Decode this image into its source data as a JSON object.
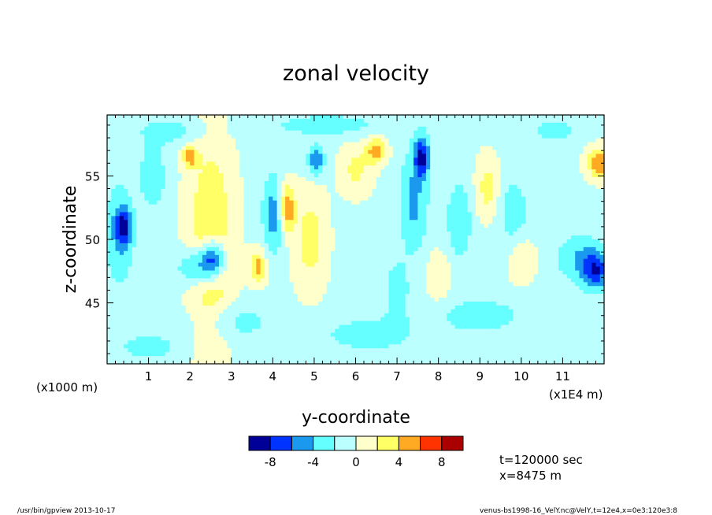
{
  "chart_data": {
    "type": "heatmap",
    "title": "zonal velocity",
    "xlabel": "y-coordinate",
    "ylabel": "z-coordinate",
    "x_unit_note": "(x1E4 m)",
    "y_unit_note": "(x1000 m)",
    "xlim": [
      0,
      12
    ],
    "ylim": [
      40.2,
      59.8
    ],
    "x_ticks": [
      "1",
      "2",
      "3",
      "4",
      "5",
      "6",
      "7",
      "8",
      "9",
      "10",
      "11"
    ],
    "y_ticks": [
      "45",
      "50",
      "55"
    ],
    "x_tick_values": [
      1,
      2,
      3,
      4,
      5,
      6,
      7,
      8,
      9,
      10,
      11
    ],
    "y_tick_values": [
      45,
      50,
      55
    ],
    "levels": [
      -10,
      -8,
      -6,
      -4,
      -2,
      0,
      2,
      4,
      6,
      8,
      10
    ],
    "colorbar_labels": [
      "-8",
      "-4",
      "0",
      "4",
      "8"
    ],
    "colorbar_label_values": [
      -8,
      -4,
      0,
      4,
      8
    ],
    "colors": [
      "#000099",
      "#0033ff",
      "#1a99ee",
      "#66ffff",
      "#bbffff",
      "#ffffcc",
      "#ffff66",
      "#ffaa22",
      "#ff3300",
      "#aa0000"
    ],
    "blobs": [
      {
        "y": 2.55,
        "z": 48.5,
        "amp": -8.5,
        "wy": 0.3,
        "wz": 1.6
      },
      {
        "y": 2.15,
        "z": 47.8,
        "amp": -5.0,
        "wy": 0.45,
        "wz": 1.5
      },
      {
        "y": 2.5,
        "z": 49.5,
        "amp": 5.0,
        "wy": 0.55,
        "wz": 8.0
      },
      {
        "y": 3.65,
        "z": 47.8,
        "amp": 5.5,
        "wy": 0.2,
        "wz": 1.3
      },
      {
        "y": 4.35,
        "z": 52.5,
        "amp": 6.5,
        "wy": 0.18,
        "wz": 1.8
      },
      {
        "y": 4.0,
        "z": 52.0,
        "amp": -4.5,
        "wy": 0.25,
        "wz": 3.2
      },
      {
        "y": 4.9,
        "z": 50.0,
        "amp": 3.5,
        "wy": 0.4,
        "wz": 4.0
      },
      {
        "y": 5.05,
        "z": 56.2,
        "amp": -5.5,
        "wy": 0.2,
        "wz": 1.2
      },
      {
        "y": 0.4,
        "z": 51.0,
        "amp": -6.0,
        "wy": 0.18,
        "wz": 1.3
      },
      {
        "y": 0.3,
        "z": 50.5,
        "amp": -3.8,
        "wy": 0.35,
        "wz": 4.0
      },
      {
        "y": 7.6,
        "z": 56.5,
        "amp": -7.5,
        "wy": 0.18,
        "wz": 1.6
      },
      {
        "y": 7.4,
        "z": 53.0,
        "amp": -4.0,
        "wy": 0.35,
        "wz": 4.0
      },
      {
        "y": 8.5,
        "z": 51.5,
        "amp": -3.5,
        "wy": 0.3,
        "wz": 3.0
      },
      {
        "y": 11.8,
        "z": 47.5,
        "amp": -6.5,
        "wy": 0.3,
        "wz": 1.5
      },
      {
        "y": 11.4,
        "z": 48.5,
        "amp": -3.5,
        "wy": 0.55,
        "wz": 2.0
      },
      {
        "y": 11.9,
        "z": 56.0,
        "amp": 6.5,
        "wy": 0.3,
        "wz": 1.2
      },
      {
        "y": 6.5,
        "z": 57.0,
        "amp": 5.5,
        "wy": 0.25,
        "wz": 1.0
      },
      {
        "y": 6.0,
        "z": 55.5,
        "amp": 3.0,
        "wy": 0.4,
        "wz": 2.0
      },
      {
        "y": 2.0,
        "z": 56.5,
        "amp": 5.5,
        "wy": 0.18,
        "wz": 0.8
      },
      {
        "y": 1.1,
        "z": 55.0,
        "amp": -3.5,
        "wy": 0.3,
        "wz": 2.5
      },
      {
        "y": 9.2,
        "z": 54.0,
        "amp": 3.5,
        "wy": 0.3,
        "wz": 2.5
      },
      {
        "y": 9.8,
        "z": 52.0,
        "amp": -2.8,
        "wy": 0.4,
        "wz": 3.0
      },
      {
        "y": 10.0,
        "z": 48.5,
        "amp": 2.5,
        "wy": 0.35,
        "wz": 2.0
      },
      {
        "y": 6.3,
        "z": 42.5,
        "amp": -2.5,
        "wy": 1.2,
        "wz": 1.5
      },
      {
        "y": 3.0,
        "z": 43.5,
        "amp": -2.5,
        "wy": 1.0,
        "wz": 1.5
      },
      {
        "y": 9.0,
        "z": 44.0,
        "amp": -2.4,
        "wy": 1.2,
        "wz": 1.6
      },
      {
        "y": 1.0,
        "z": 41.5,
        "amp": -2.4,
        "wy": 0.8,
        "wz": 1.2
      },
      {
        "y": 5.3,
        "z": 59.0,
        "amp": -2.5,
        "wy": 1.5,
        "wz": 1.0
      },
      {
        "y": 1.5,
        "z": 58.5,
        "amp": -2.5,
        "wy": 0.8,
        "wz": 1.0
      },
      {
        "y": 10.8,
        "z": 58.5,
        "amp": -2.4,
        "wy": 0.6,
        "wz": 1.0
      },
      {
        "y": 7.0,
        "z": 46.0,
        "amp": -2.6,
        "wy": 0.3,
        "wz": 2.5
      },
      {
        "y": 8.0,
        "z": 47.0,
        "amp": 2.6,
        "wy": 0.3,
        "wz": 2.0
      }
    ],
    "field_background": -0.5
  },
  "info": {
    "time": "t=120000 sec",
    "position": "x=8475 m"
  },
  "footer": {
    "program": "/usr/bin/gpview  2013-10-17",
    "source": "venus-bs1998-16_VelY.nc@VelY,t=12e4,x=0e3:120e3:8"
  }
}
